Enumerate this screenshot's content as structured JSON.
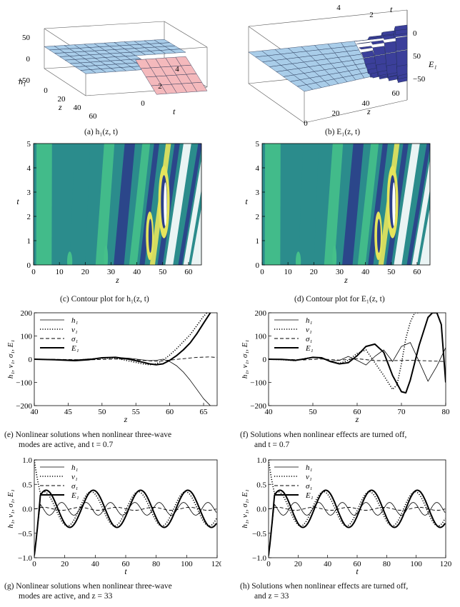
{
  "captions": {
    "a": "(a) h₁(z, t)",
    "b": "(b) E₁(z, t)",
    "c": "(c) Contour plot for h₁(z, t)",
    "d": "(d) Contour plot for E₁(z, t)",
    "e1": "(e) Nonlinear solutions when nonlinear three-wave",
    "e2": "modes are active, and t = 0.7",
    "f1": "(f) Solutions when nonlinear effects are turned off,",
    "f2": "and t = 0.7",
    "g1": "(g) Nonlinear solutions when nonlinear three-wave",
    "g2": "modes are active, and z = 33",
    "h1": "(h) Solutions when nonlinear effects are turned off,",
    "h2": "and z = 33"
  },
  "colors": {
    "surface_light": "#a9cde9",
    "surface_dark": "#3b3f9a",
    "surface_pink": "#f4b9bc",
    "contour_dark": "#2b3e8a",
    "contour_mid": "#2b8c8c",
    "contour_light": "#45c08a",
    "contour_yellow": "#e5e45c"
  },
  "chart_data": [
    {
      "id": "a",
      "type": "surface3d",
      "title": "h₁(z, t)",
      "axes": {
        "z": {
          "label": "z",
          "ticks": [
            "0",
            "20",
            "40",
            "60"
          ]
        },
        "t": {
          "label": "t",
          "ticks": [
            "0",
            "2",
            "4"
          ]
        },
        "h": {
          "label": "h₁",
          "ticks": [
            "50",
            "0",
            "−50"
          ]
        }
      }
    },
    {
      "id": "b",
      "type": "surface3d",
      "title": "E₁(z, t)",
      "axes": {
        "z": {
          "label": "z",
          "ticks": [
            "0",
            "20",
            "40",
            "60"
          ]
        },
        "t": {
          "label": "t",
          "ticks": [
            "4",
            "2"
          ]
        },
        "E": {
          "label": "E₁",
          "ticks": [
            "0",
            "50",
            "−50"
          ]
        }
      }
    },
    {
      "id": "c",
      "type": "contour",
      "title": "Contour plot for h₁(z, t)",
      "xlabel": "z",
      "ylabel": "t",
      "xlim": [
        0,
        65
      ],
      "ylim": [
        0,
        5
      ],
      "xticks": [
        0,
        10,
        20,
        30,
        40,
        50,
        60
      ],
      "yticks": [
        0,
        1,
        2,
        3,
        4,
        5
      ]
    },
    {
      "id": "d",
      "type": "contour",
      "title": "Contour plot for E₁(z, t)",
      "xlabel": "z",
      "ylabel": "t",
      "xlim": [
        0,
        65
      ],
      "ylim": [
        0,
        5
      ],
      "xticks": [
        0,
        10,
        20,
        30,
        40,
        50,
        60
      ],
      "yticks": [
        0,
        1,
        2,
        3,
        4,
        5
      ]
    },
    {
      "id": "e",
      "type": "line",
      "xlabel": "z",
      "ylabel": "h₁, v₁, σ₁, E₁",
      "xlim": [
        40,
        67
      ],
      "ylim": [
        -200,
        200
      ],
      "xticks": [
        40,
        45,
        50,
        55,
        60,
        65
      ],
      "yticks": [
        -200,
        -100,
        0,
        100,
        200
      ],
      "legend": [
        "h₁",
        "v₁",
        "σ₁",
        "E₁"
      ],
      "series": [
        {
          "name": "h₁",
          "style": "thin",
          "x": [
            40,
            43,
            46,
            48,
            50,
            52,
            54,
            56,
            57,
            58,
            59,
            60,
            61,
            62,
            63,
            64,
            65,
            66
          ],
          "y": [
            0,
            -1,
            -3,
            1,
            5,
            8,
            4,
            -3,
            -6,
            -5,
            0,
            -10,
            -28,
            -55,
            -90,
            -130,
            -170,
            -200
          ]
        },
        {
          "name": "v₁",
          "style": "dotted",
          "x": [
            40,
            43,
            46,
            48,
            50,
            52,
            54,
            55,
            56,
            57,
            58,
            59,
            60,
            61,
            62,
            63,
            64,
            65,
            65.5
          ],
          "y": [
            0,
            -2,
            -5,
            0,
            4,
            5,
            -8,
            -14,
            -20,
            -24,
            -20,
            -5,
            18,
            45,
            75,
            105,
            145,
            185,
            200
          ]
        },
        {
          "name": "σ₁",
          "style": "dashed",
          "x": [
            40,
            44,
            48,
            52,
            54,
            56,
            58,
            60,
            62,
            64,
            66,
            67
          ],
          "y": [
            0,
            -1,
            -3,
            1,
            0,
            -5,
            -9,
            -4,
            2,
            8,
            10,
            7
          ]
        },
        {
          "name": "E₁",
          "style": "thick",
          "x": [
            40,
            43,
            46,
            48,
            50,
            52,
            54,
            56,
            57,
            58,
            59,
            60,
            61,
            62,
            63,
            64,
            65,
            66
          ],
          "y": [
            0,
            -2,
            -6,
            -2,
            6,
            8,
            0,
            -13,
            -20,
            -24,
            -20,
            -5,
            15,
            40,
            70,
            110,
            155,
            200
          ]
        }
      ]
    },
    {
      "id": "f",
      "type": "line",
      "xlabel": "z",
      "ylabel": "h₁, v₁, σ₁, E₁",
      "xlim": [
        40,
        80
      ],
      "ylim": [
        -200,
        200
      ],
      "xticks": [
        40,
        50,
        60,
        70,
        80
      ],
      "yticks": [
        -200,
        -100,
        0,
        100,
        200
      ],
      "legend": [
        "h₁",
        "v₁",
        "σ₁",
        "E₁"
      ],
      "series": [
        {
          "name": "h₁",
          "style": "thin",
          "x": [
            40,
            43,
            46,
            48,
            50,
            52,
            54,
            56,
            58,
            60,
            62,
            64,
            66,
            68,
            70,
            72,
            74,
            76,
            78,
            80
          ],
          "y": [
            0,
            -2,
            -4,
            2,
            8,
            4,
            -8,
            -5,
            12,
            -5,
            -25,
            12,
            40,
            -10,
            55,
            72,
            -10,
            -95,
            -30,
            50
          ]
        },
        {
          "name": "v₁",
          "style": "dotted",
          "x": [
            40,
            43,
            46,
            48,
            50,
            52,
            54,
            56,
            58,
            60,
            62,
            64,
            66,
            68,
            69,
            70,
            71,
            72,
            73,
            74
          ],
          "y": [
            0,
            -2,
            -6,
            2,
            8,
            4,
            -10,
            -18,
            -5,
            25,
            40,
            -15,
            -70,
            -130,
            -110,
            -20,
            90,
            160,
            200,
            200
          ]
        },
        {
          "name": "σ₁",
          "style": "dashed",
          "x": [
            40,
            44,
            48,
            52,
            56,
            60,
            64,
            68,
            72,
            76,
            80
          ],
          "y": [
            0,
            -1,
            -3,
            1,
            -4,
            2,
            -6,
            -6,
            -5,
            -7,
            -10
          ]
        },
        {
          "name": "E₁",
          "style": "thick",
          "x": [
            40,
            43,
            46,
            48,
            50,
            52,
            54,
            56,
            58,
            60,
            62,
            64,
            66,
            68,
            70,
            71,
            72,
            74,
            76,
            77,
            78,
            79,
            80
          ],
          "y": [
            0,
            -1,
            -5,
            1,
            8,
            6,
            -10,
            -20,
            -15,
            15,
            55,
            65,
            30,
            -70,
            -140,
            -145,
            -90,
            60,
            180,
            200,
            200,
            150,
            -100
          ]
        }
      ]
    },
    {
      "id": "g",
      "type": "line",
      "xlabel": "t",
      "ylabel": "h₁, v₁, σ₁, E₁",
      "xlim": [
        0,
        120
      ],
      "ylim": [
        -1,
        1
      ],
      "xticks": [
        0,
        20,
        40,
        60,
        80,
        100,
        120
      ],
      "yticks": [
        -1.0,
        -0.5,
        0.0,
        0.5,
        1.0
      ],
      "legend": [
        "h₁",
        "v₁",
        "σ₁",
        "E₁"
      ],
      "series": [
        {
          "name": "h₁",
          "style": "thin",
          "period": 16,
          "amp": 0.13,
          "phase": 0.8
        },
        {
          "name": "v₁",
          "style": "dotted",
          "period": 31,
          "amp": 0.35,
          "phase": 0.3
        },
        {
          "name": "σ₁",
          "style": "dashed",
          "period": 24,
          "amp": 0.03,
          "phase": 0.0
        },
        {
          "name": "E₁",
          "style": "thick",
          "period": 31,
          "amp": 0.38,
          "phase": 0.0
        }
      ]
    },
    {
      "id": "h",
      "type": "line",
      "xlabel": "t",
      "ylabel": "h₁, v₁, σ₁, E₁",
      "xlim": [
        0,
        120
      ],
      "ylim": [
        -1,
        1
      ],
      "xticks": [
        0,
        20,
        40,
        60,
        80,
        100,
        120
      ],
      "yticks": [
        -1.0,
        -0.5,
        0.0,
        0.5,
        1.0
      ],
      "legend": [
        "h₁",
        "v₁",
        "σ₁",
        "E₁"
      ],
      "series": [
        {
          "name": "h₁",
          "style": "thin",
          "period": 16,
          "amp": 0.13,
          "phase": 0.8
        },
        {
          "name": "v₁",
          "style": "dotted",
          "period": 31,
          "amp": 0.35,
          "phase": 0.3
        },
        {
          "name": "σ₁",
          "style": "dashed",
          "period": 24,
          "amp": 0.03,
          "phase": 0.0
        },
        {
          "name": "E₁",
          "style": "thick",
          "period": 31,
          "amp": 0.38,
          "phase": 0.0
        }
      ]
    }
  ]
}
